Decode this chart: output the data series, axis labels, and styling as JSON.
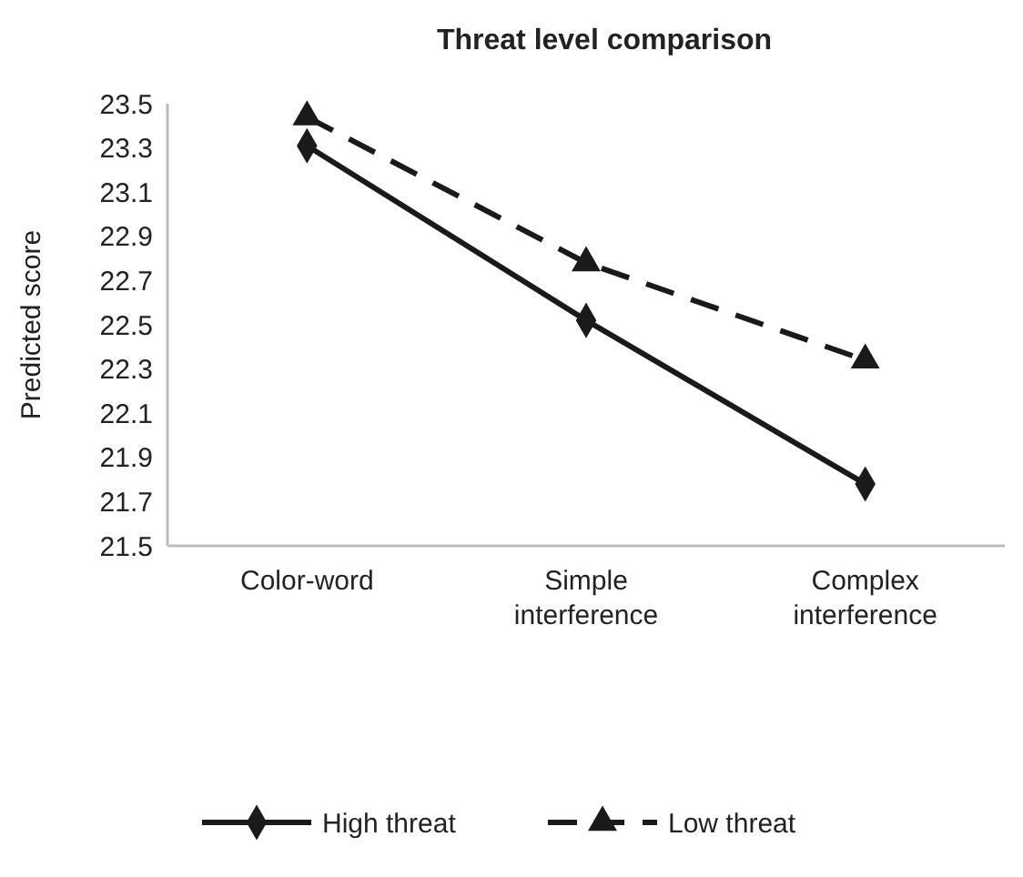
{
  "chart_data": {
    "type": "line",
    "title": "Threat level comparison",
    "ylabel": "Predicted score",
    "categories": [
      "Color-word",
      "Simple interference",
      "Complex interference"
    ],
    "series": [
      {
        "name": "High threat",
        "color": "#1a1a1a",
        "values": [
          23.31,
          22.52,
          21.78
        ],
        "marker": "diamond",
        "line_style": "solid"
      },
      {
        "name": "Low threat",
        "color": "#1a1a1a",
        "values": [
          23.44,
          22.78,
          22.34
        ],
        "marker": "triangle",
        "line_style": "dashed"
      }
    ],
    "ylim": [
      21.5,
      23.5
    ],
    "yticks": [
      21.5,
      21.7,
      21.9,
      22.1,
      22.3,
      22.5,
      22.7,
      22.9,
      23.1,
      23.3,
      23.5
    ],
    "grid": false,
    "legend": "bottom"
  }
}
